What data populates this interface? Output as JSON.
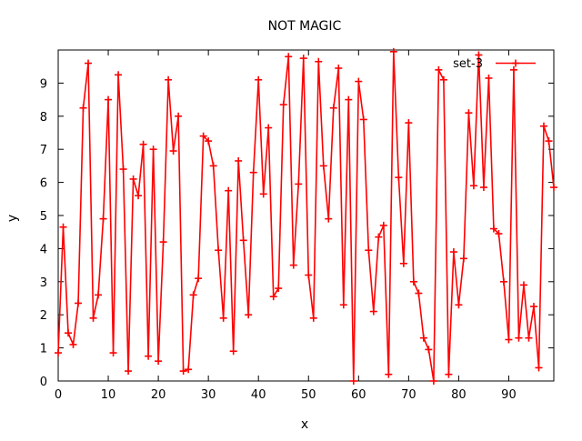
{
  "chart_data": {
    "type": "line",
    "title": "NOT MAGIC",
    "xlabel": "x",
    "ylabel": "y",
    "xlim": [
      0,
      99
    ],
    "ylim": [
      0,
      10
    ],
    "xticks": [
      0,
      10,
      20,
      30,
      40,
      50,
      60,
      70,
      80,
      90
    ],
    "yticks": [
      0,
      1,
      2,
      3,
      4,
      5,
      6,
      7,
      8,
      9
    ],
    "grid": false,
    "legend": "top-right",
    "series": [
      {
        "name": "set-3",
        "color": "#ff0000",
        "marker": "plus",
        "x": [
          0,
          1,
          2,
          3,
          4,
          5,
          6,
          7,
          8,
          9,
          10,
          11,
          12,
          13,
          14,
          15,
          16,
          17,
          18,
          19,
          20,
          21,
          22,
          23,
          24,
          25,
          26,
          27,
          28,
          29,
          30,
          31,
          32,
          33,
          34,
          35,
          36,
          37,
          38,
          39,
          40,
          41,
          42,
          43,
          44,
          45,
          46,
          47,
          48,
          49,
          50,
          51,
          52,
          53,
          54,
          55,
          56,
          57,
          58,
          59,
          60,
          61,
          62,
          63,
          64,
          65,
          66,
          67,
          68,
          69,
          70,
          71,
          72,
          73,
          74,
          75,
          76,
          77,
          78,
          79,
          80,
          81,
          82,
          83,
          84,
          85,
          86,
          87,
          88,
          89,
          90,
          91,
          92,
          93,
          94,
          95,
          96,
          97,
          98,
          99
        ],
        "y": [
          0.85,
          4.65,
          1.45,
          1.1,
          2.35,
          8.25,
          9.6,
          1.9,
          2.6,
          4.9,
          8.5,
          0.85,
          9.25,
          6.4,
          0.3,
          6.1,
          5.6,
          7.15,
          0.75,
          7.0,
          0.6,
          4.2,
          9.1,
          6.95,
          8.0,
          0.3,
          0.35,
          2.6,
          3.1,
          7.4,
          7.25,
          6.5,
          3.95,
          1.9,
          5.75,
          0.9,
          6.65,
          4.25,
          2.0,
          6.3,
          9.1,
          5.65,
          7.65,
          2.55,
          2.8,
          8.35,
          9.8,
          3.5,
          5.95,
          9.75,
          3.2,
          1.9,
          9.65,
          6.5,
          4.9,
          8.25,
          9.45,
          2.3,
          8.5,
          0.0,
          9.05,
          7.9,
          3.95,
          2.1,
          4.35,
          4.7,
          0.2,
          9.95,
          6.15,
          3.55,
          7.8,
          3.0,
          2.65,
          1.3,
          0.95,
          0.0,
          9.4,
          9.1,
          0.2,
          3.9,
          2.3,
          3.7,
          8.1,
          5.9,
          9.85,
          5.85,
          9.15,
          4.6,
          4.45,
          3.0,
          1.25,
          9.4,
          1.3,
          2.9,
          1.3,
          2.25,
          0.4,
          7.7,
          7.25,
          5.85
        ]
      }
    ]
  }
}
